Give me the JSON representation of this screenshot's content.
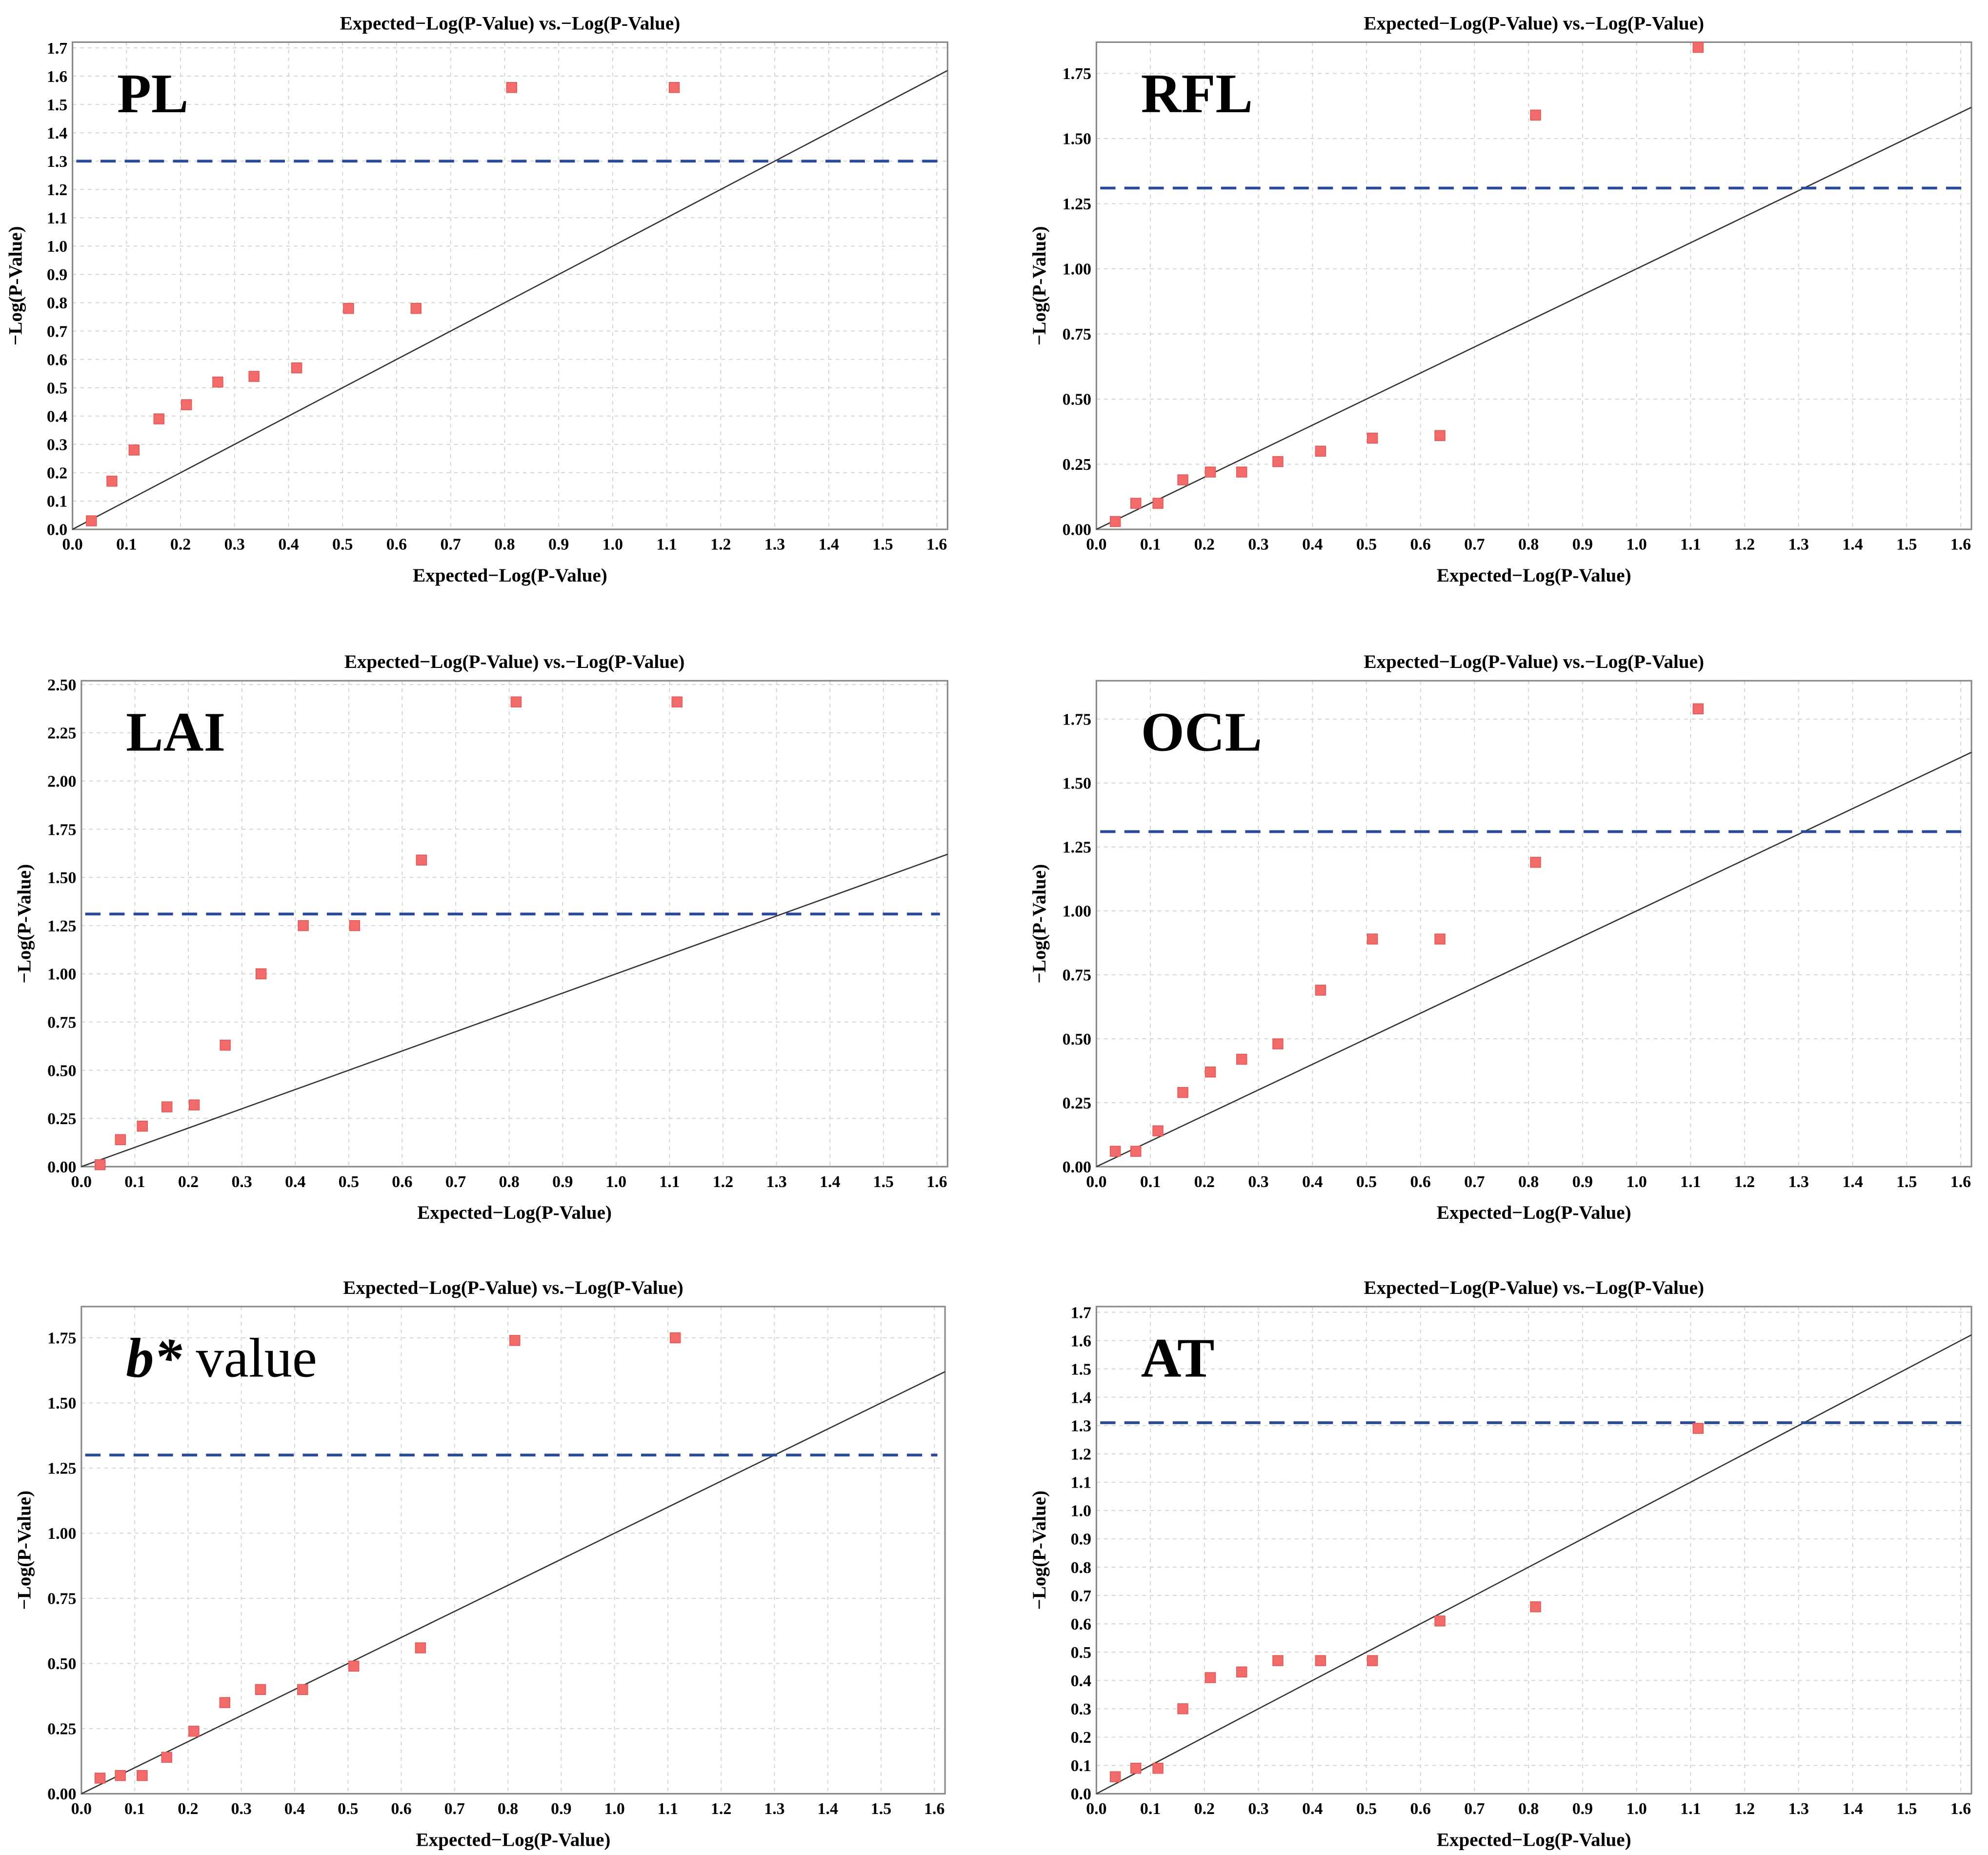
{
  "colors": {
    "point": "#f26b6b",
    "threshold": "#2b4a9a",
    "diagonal": "#333333",
    "grid": "#d6d6d6"
  },
  "chart_data": [
    {
      "type": "scatter",
      "label": "PL",
      "title": "Expected−Log(P-Value) vs.−Log(P-Value)",
      "xlabel": "Expected−Log(P-Value)",
      "ylabel": "−Log(P-Value)",
      "xlim": [
        0,
        1.62
      ],
      "ylim": [
        0,
        1.72
      ],
      "ytick_step": 0.1,
      "ytick_decimals": 1,
      "threshold": 1.3,
      "x": [
        0.035,
        0.073,
        0.114,
        0.16,
        0.211,
        0.269,
        0.336,
        0.415,
        0.511,
        0.636,
        0.813,
        1.114
      ],
      "y": [
        0.03,
        0.17,
        0.28,
        0.39,
        0.44,
        0.52,
        0.54,
        0.57,
        0.78,
        0.78,
        1.56,
        1.56
      ]
    },
    {
      "type": "scatter",
      "label": "RFL",
      "title": "Expected−Log(P-Value) vs.−Log(P-Value)",
      "xlabel": "Expected−Log(P-Value)",
      "ylabel": "−Log(P-Value)",
      "xlim": [
        0,
        1.62
      ],
      "ylim": [
        0,
        1.87
      ],
      "ytick_step": 0.25,
      "ytick_decimals": 2,
      "threshold": 1.31,
      "x": [
        0.035,
        0.073,
        0.114,
        0.16,
        0.211,
        0.269,
        0.336,
        0.415,
        0.511,
        0.636,
        0.813,
        1.114
      ],
      "y": [
        0.03,
        0.1,
        0.1,
        0.19,
        0.22,
        0.22,
        0.26,
        0.3,
        0.35,
        0.36,
        1.59,
        1.85
      ]
    },
    {
      "type": "scatter",
      "label": "LAI",
      "title": "Expected−Log(P-Value) vs.−Log(P-Value)",
      "xlabel": "Expected−Log(P-Value)",
      "ylabel": "−Log(P-Value)",
      "xlim": [
        0,
        1.62
      ],
      "ylim": [
        0,
        2.52
      ],
      "ytick_step": 0.25,
      "ytick_decimals": 2,
      "threshold": 1.31,
      "x": [
        0.035,
        0.073,
        0.114,
        0.16,
        0.211,
        0.269,
        0.336,
        0.415,
        0.511,
        0.636,
        0.813,
        1.114
      ],
      "y": [
        0.01,
        0.14,
        0.21,
        0.31,
        0.32,
        0.63,
        1.0,
        1.25,
        1.25,
        1.59,
        2.41,
        2.41
      ]
    },
    {
      "type": "scatter",
      "label": "OCL",
      "title": "Expected−Log(P-Value) vs.−Log(P-Value)",
      "xlabel": "Expected−Log(P-Value)",
      "ylabel": "−Log(P-Value)",
      "xlim": [
        0,
        1.62
      ],
      "ylim": [
        0,
        1.9
      ],
      "ytick_step": 0.25,
      "ytick_decimals": 2,
      "threshold": 1.31,
      "x": [
        0.035,
        0.073,
        0.114,
        0.16,
        0.211,
        0.269,
        0.336,
        0.415,
        0.511,
        0.636,
        0.813,
        1.114
      ],
      "y": [
        0.06,
        0.06,
        0.14,
        0.29,
        0.37,
        0.42,
        0.48,
        0.69,
        0.89,
        0.89,
        1.19,
        1.79
      ]
    },
    {
      "type": "scatter",
      "label": "b* value",
      "label_italic_prefix": "b*",
      "title": "Expected−Log(P-Value) vs.−Log(P-Value)",
      "xlabel": "Expected−Log(P-Value)",
      "ylabel": "−Log(P-Value)",
      "xlim": [
        0,
        1.62
      ],
      "ylim": [
        0,
        1.87
      ],
      "ytick_step": 0.25,
      "ytick_decimals": 2,
      "threshold": 1.3,
      "x": [
        0.035,
        0.073,
        0.114,
        0.16,
        0.211,
        0.269,
        0.336,
        0.415,
        0.511,
        0.636,
        0.813,
        1.114
      ],
      "y": [
        0.06,
        0.07,
        0.07,
        0.14,
        0.24,
        0.35,
        0.4,
        0.4,
        0.49,
        0.56,
        1.74,
        1.75
      ]
    },
    {
      "type": "scatter",
      "label": "AT",
      "title": "Expected−Log(P-Value) vs.−Log(P-Value)",
      "xlabel": "Expected−Log(P-Value)",
      "ylabel": "−Log(P-Value)",
      "xlim": [
        0,
        1.62
      ],
      "ylim": [
        0,
        1.72
      ],
      "ytick_step": 0.1,
      "ytick_decimals": 1,
      "threshold": 1.31,
      "x": [
        0.035,
        0.073,
        0.114,
        0.16,
        0.211,
        0.269,
        0.336,
        0.415,
        0.511,
        0.636,
        0.813,
        1.114
      ],
      "y": [
        0.06,
        0.09,
        0.09,
        0.3,
        0.41,
        0.43,
        0.47,
        0.47,
        0.47,
        0.61,
        0.66,
        1.29
      ]
    }
  ]
}
